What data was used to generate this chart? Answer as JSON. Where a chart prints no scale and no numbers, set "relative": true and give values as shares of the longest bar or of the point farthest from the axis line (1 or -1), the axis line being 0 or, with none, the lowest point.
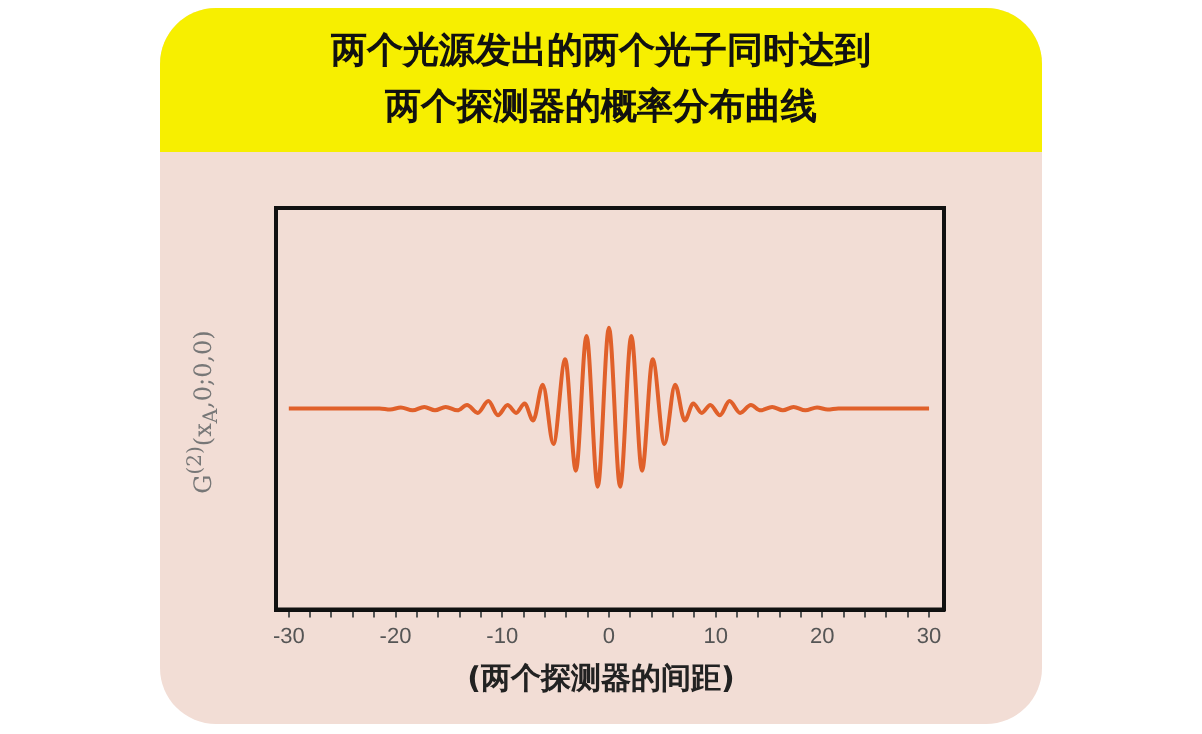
{
  "chart_data": {
    "type": "line",
    "title": "两个光源发出的两个光子同时达到两个探测器的概率分布曲线",
    "xlabel": "(两个探测器的间距)",
    "ylabel": "G$^{(2)}$(x$_{A}$,0;0,0)",
    "relative": true,
    "grid": false,
    "legend": false,
    "marker": "none",
    "line_style": "solid",
    "xlim": [
      -31.2,
      31.4
    ],
    "xticks": [
      -30,
      {
        "value": -28,
        "label": null
      },
      {
        "value": -26,
        "label": null
      },
      {
        "value": -24,
        "label": null
      },
      {
        "value": -22,
        "label": null
      },
      -20,
      {
        "value": -18,
        "label": null
      },
      {
        "value": -16,
        "label": null
      },
      {
        "value": -14,
        "label": null
      },
      {
        "value": -12,
        "label": null
      },
      -10,
      {
        "value": -8,
        "label": null
      },
      {
        "value": -6,
        "label": null
      },
      {
        "value": -4,
        "label": null
      },
      {
        "value": -2,
        "label": null
      },
      0,
      {
        "value": 2,
        "label": null
      },
      {
        "value": 4,
        "label": null
      },
      {
        "value": 6,
        "label": null
      },
      {
        "value": 8,
        "label": null
      },
      10,
      {
        "value": 12,
        "label": null
      },
      {
        "value": 14,
        "label": null
      },
      {
        "value": 16,
        "label": null
      },
      {
        "value": 18,
        "label": null
      },
      20,
      {
        "value": 22,
        "label": null
      },
      {
        "value": 24,
        "label": null
      },
      {
        "value": 26,
        "label": null
      },
      {
        "value": 28,
        "label": null
      },
      30
    ],
    "series": [
      {
        "color": "#e0602a",
        "x": [
          -30,
          -21.5,
          -20.5,
          -19.5,
          -18.4,
          -17.3,
          -16.3,
          -15.3,
          -14.2,
          -13.3,
          -12.3,
          -11.3,
          -10.4,
          -9.5,
          -8.7,
          -7.9,
          -7.1,
          -6.2,
          -5.2,
          -4.1,
          -3.1,
          -2.1,
          -1.05,
          0,
          1.05,
          2.1,
          3.1,
          4.1,
          5.2,
          6.2,
          7.1,
          7.9,
          8.7,
          9.5,
          10.4,
          11.3,
          12.3,
          13.3,
          14.2,
          15.3,
          16.3,
          17.3,
          18.4,
          19.5,
          20.5,
          21.5,
          30
        ],
        "values": [
          0.714,
          0.714,
          0.71,
          0.717,
          0.707,
          0.719,
          0.707,
          0.719,
          0.707,
          0.726,
          0.698,
          0.74,
          0.69,
          0.726,
          0.698,
          0.731,
          0.671,
          0.798,
          0.588,
          0.888,
          0.493,
          0.971,
          0.436,
          1.0,
          0.436,
          0.971,
          0.493,
          0.888,
          0.588,
          0.798,
          0.671,
          0.731,
          0.698,
          0.726,
          0.69,
          0.74,
          0.698,
          0.726,
          0.707,
          0.719,
          0.707,
          0.719,
          0.707,
          0.717,
          0.71,
          0.714,
          0.714
        ]
      }
    ]
  }
}
